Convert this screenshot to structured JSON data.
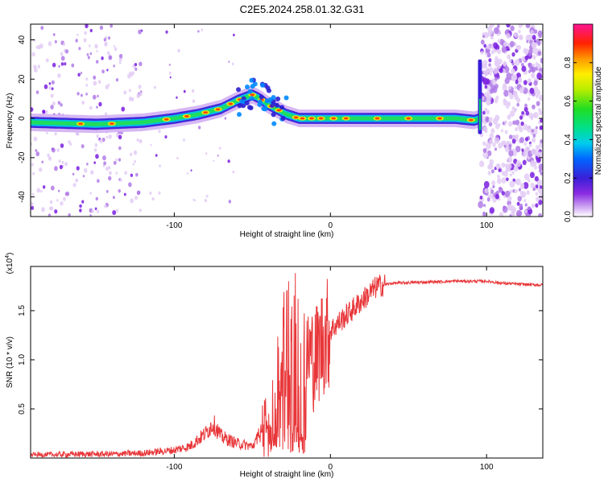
{
  "title": "C2E5.2024.258.01.32.G31",
  "chart_data": [
    {
      "type": "heatmap",
      "xlabel": "Height of straight line (km)",
      "ylabel": "Frequency (Hz)",
      "xlim": [
        -192,
        136
      ],
      "ylim": [
        -50,
        48
      ],
      "xticks": [
        -100,
        0,
        100
      ],
      "xtick_labels": [
        "-100",
        "0",
        "100"
      ],
      "yticks": [
        -40,
        -20,
        0,
        20,
        40
      ],
      "ytick_labels": [
        "-40",
        "-20",
        "0",
        "20",
        "40"
      ],
      "colorbar": {
        "label": "Normalized spectral amplitude",
        "range": [
          0,
          1
        ],
        "ticks": [
          0.0,
          0.2,
          0.4,
          0.6,
          0.8
        ],
        "tick_labels": [
          "0.0",
          "0.2",
          "0.4",
          "0.6",
          "0.8"
        ]
      },
      "ridge": {
        "description_points": [
          [
            -192,
            -2
          ],
          [
            -150,
            -3
          ],
          [
            -120,
            -2
          ],
          [
            -100,
            0
          ],
          [
            -85,
            2
          ],
          [
            -70,
            5
          ],
          [
            -60,
            9
          ],
          [
            -50,
            12
          ],
          [
            -45,
            10
          ],
          [
            -40,
            7
          ],
          [
            -35,
            5
          ],
          [
            -28,
            2
          ],
          [
            -20,
            0
          ],
          [
            -10,
            0
          ],
          [
            0,
            0
          ],
          [
            20,
            0
          ],
          [
            50,
            0
          ],
          [
            80,
            0
          ],
          [
            92,
            -1
          ],
          [
            96,
            0
          ]
        ]
      }
    },
    {
      "type": "line",
      "xlabel": "Height of straight line (km)",
      "ylabel": "SNR (10 * v/v)",
      "scale_note": "(x10",
      "scale_exp": "4",
      "xlim": [
        -192,
        136
      ],
      "ylim": [
        0,
        1.95
      ],
      "xticks": [
        -100,
        0,
        100
      ],
      "xtick_labels": [
        "-100",
        "0",
        "100"
      ],
      "yticks": [
        0.5,
        1.0,
        1.5
      ],
      "ytick_labels": [
        "0.5",
        "1.0",
        "1.5"
      ],
      "series": [
        {
          "color": "#e8373a",
          "points": [
            [
              -192,
              0.03
            ],
            [
              -160,
              0.04
            ],
            [
              -140,
              0.04
            ],
            [
              -120,
              0.05
            ],
            [
              -100,
              0.08
            ],
            [
              -90,
              0.12
            ],
            [
              -80,
              0.25
            ],
            [
              -75,
              0.35
            ],
            [
              -70,
              0.22
            ],
            [
              -60,
              0.15
            ],
            [
              -50,
              0.12
            ],
            [
              -40,
              0.35
            ],
            [
              -35,
              0.8
            ],
            [
              -30,
              1.1
            ],
            [
              -25,
              1.45
            ],
            [
              -20,
              1.2
            ],
            [
              -15,
              1.1
            ],
            [
              -10,
              1.0
            ],
            [
              -5,
              1.2
            ],
            [
              0,
              1.3
            ],
            [
              10,
              1.45
            ],
            [
              20,
              1.6
            ],
            [
              30,
              1.75
            ],
            [
              40,
              1.78
            ],
            [
              60,
              1.79
            ],
            [
              80,
              1.8
            ],
            [
              100,
              1.8
            ],
            [
              110,
              1.78
            ],
            [
              120,
              1.77
            ],
            [
              136,
              1.76
            ]
          ]
        }
      ]
    }
  ]
}
